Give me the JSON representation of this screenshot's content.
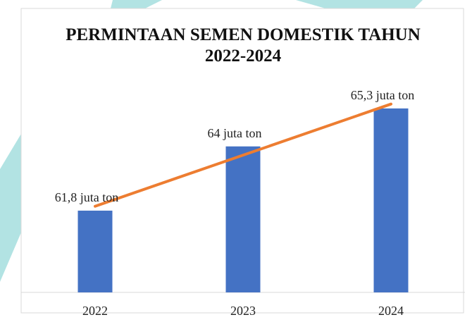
{
  "chart_data": {
    "type": "bar",
    "title": "PERMINTAAN SEMEN DOMESTIK TAHUN 2022-2024",
    "categories": [
      "2022",
      "2023",
      "2024"
    ],
    "values": [
      61.8,
      64,
      65.3
    ],
    "value_labels": [
      "61,8 juta ton",
      "64 juta ton",
      "65,3 juta ton"
    ],
    "color": "#4472c4",
    "trendline": true,
    "trendline_color": "#ed7d31",
    "ylim": [
      59,
      68
    ]
  }
}
